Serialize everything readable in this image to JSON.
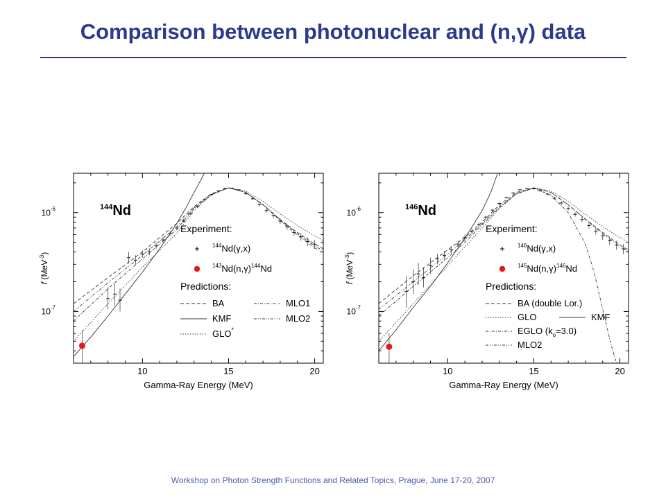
{
  "title": "Comparison between photonuclear and (n,γ) data",
  "footer": "Workshop on Photon Strength Functions and Related Topics, Prague, June 17-20, 2007",
  "chart_data": [
    {
      "type": "line",
      "nucleus": {
        "mass": "144",
        "symbol": "Nd"
      },
      "xlabel": "Gamma-Ray Energy (MeV)",
      "ylabel": {
        "italic": "f",
        "rest": " (MeV",
        "sup": "-3",
        "close": ")"
      },
      "xlim": [
        6,
        20.5
      ],
      "ylim": [
        3e-08,
        2.5e-06
      ],
      "yscale": "log",
      "xticks": [
        {
          "v": 10,
          "label": "10"
        },
        {
          "v": 15,
          "label": "15"
        },
        {
          "v": 20,
          "label": "20"
        }
      ],
      "yticks": [
        {
          "v": 1e-07,
          "base": "10",
          "exp": "-7"
        },
        {
          "v": 1e-06,
          "base": "10",
          "exp": "-6"
        }
      ],
      "legend": {
        "experiment_title": "Experiment:",
        "experiment": [
          {
            "marker": "plus",
            "sup1": "144",
            "text": "Nd(γ,x)",
            "sup2": "",
            "tail": ""
          },
          {
            "marker": "dot",
            "sup1": "143",
            "text": "Nd(n,γ)",
            "sup2": "144",
            "tail": "Nd"
          }
        ],
        "predictions_title": "Predictions:",
        "predictions": [
          {
            "label": "BA",
            "sup": "",
            "dash": "5,3",
            "col": 0,
            "row": 0
          },
          {
            "label": "KMF",
            "sup": "",
            "dash": "",
            "col": 0,
            "row": 1
          },
          {
            "label": "GLO",
            "sup": "*",
            "dash": "1.5,2",
            "col": 0,
            "row": 2
          },
          {
            "label": "MLO1",
            "sup": "",
            "dash": "4,2,1,2",
            "col": 1,
            "row": 0
          },
          {
            "label": "MLO2",
            "sup": "",
            "dash": "4,2,1,2,1,2",
            "col": 1,
            "row": 1
          }
        ]
      },
      "series": [
        {
          "name": "BA",
          "dash": "5,3",
          "x": [
            6,
            8,
            10,
            12,
            13,
            14,
            15,
            16,
            17,
            18,
            19,
            20,
            20.5
          ],
          "y": [
            1.2e-07,
            2.2e-07,
            4e-07,
            7.8e-07,
            1.15e-06,
            1.55e-06,
            1.78e-06,
            1.6e-06,
            1.2e-06,
            8.5e-07,
            6.3e-07,
            4.8e-07,
            4.3e-07
          ]
        },
        {
          "name": "KMF",
          "dash": "",
          "x": [
            6,
            7,
            8,
            9,
            10,
            11,
            12,
            12.5,
            13,
            13.3,
            13.6
          ],
          "y": [
            3.5e-08,
            5.5e-08,
            9e-08,
            1.5e-07,
            2.5e-07,
            4.3e-07,
            7.8e-07,
            1.1e-06,
            1.6e-06,
            2e-06,
            2.5e-06
          ]
        },
        {
          "name": "GLO",
          "dash": "1.5,2",
          "x": [
            6,
            8,
            10,
            12,
            13,
            14,
            15,
            16,
            17,
            18,
            19,
            20,
            20.5
          ],
          "y": [
            5e-08,
            1.2e-07,
            2.8e-07,
            6.2e-07,
            1.05e-06,
            1.5e-06,
            1.78e-06,
            1.65e-06,
            1.3e-06,
            9.7e-07,
            7.4e-07,
            5.8e-07,
            5.2e-07
          ]
        },
        {
          "name": "MLO1",
          "dash": "4,2,1,2",
          "x": [
            6,
            8,
            10,
            12,
            13,
            14,
            15,
            16,
            17,
            18,
            19,
            20,
            20.5
          ],
          "y": [
            8e-08,
            1.7e-07,
            3.4e-07,
            6.8e-07,
            1.1e-06,
            1.52e-06,
            1.78e-06,
            1.6e-06,
            1.2e-06,
            8.3e-07,
            5.9e-07,
            4.4e-07,
            3.9e-07
          ]
        },
        {
          "name": "MLO2",
          "dash": "4,2,1,2,1,2",
          "x": [
            6,
            8,
            10,
            12,
            13,
            14,
            15,
            16,
            17,
            18,
            19,
            20,
            20.5
          ],
          "y": [
            1e-07,
            1.95e-07,
            3.7e-07,
            7.2e-07,
            1.12e-06,
            1.53e-06,
            1.78e-06,
            1.6e-06,
            1.21e-06,
            8.5e-07,
            6.1e-07,
            4.6e-07,
            4.1e-07
          ]
        }
      ],
      "photonuclear": [
        {
          "x": 8.0,
          "y": 1.35e-07,
          "lo": 1.05e-07,
          "hi": 1.75e-07
        },
        {
          "x": 8.4,
          "y": 1.5e-07,
          "lo": 1.15e-07,
          "hi": 1.9e-07
        },
        {
          "x": 8.7,
          "y": 1.3e-07,
          "lo": 1e-07,
          "hi": 1.7e-07
        },
        {
          "x": 9.2,
          "y": 3.5e-07,
          "lo": 3.05e-07,
          "hi": 4e-07
        },
        {
          "x": 9.6,
          "y": 3.3e-07,
          "lo": 2.95e-07,
          "hi": 3.7e-07
        },
        {
          "x": 10.0,
          "y": 3.8e-07,
          "lo": 3.5e-07,
          "hi": 4.15e-07
        },
        {
          "x": 10.4,
          "y": 4e-07,
          "lo": 3.7e-07,
          "hi": 4.35e-07
        },
        {
          "x": 10.8,
          "y": 4.6e-07,
          "lo": 4.3e-07,
          "hi": 4.95e-07
        },
        {
          "x": 11.2,
          "y": 5.3e-07,
          "lo": 5e-07,
          "hi": 5.65e-07
        },
        {
          "x": 11.6,
          "y": 6.1e-07,
          "lo": 5.8e-07,
          "hi": 6.45e-07
        },
        {
          "x": 12.0,
          "y": 7e-07,
          "lo": 6.7e-07,
          "hi": 7.35e-07
        },
        {
          "x": 12.4,
          "y": 8.2e-07,
          "lo": 7.9e-07,
          "hi": 8.5e-07
        },
        {
          "x": 12.8,
          "y": 9.8e-07,
          "lo": 9.5e-07,
          "hi": 1.01e-06
        },
        {
          "x": 13.2,
          "y": 1.15e-06,
          "lo": 1.12e-06,
          "hi": 1.18e-06
        },
        {
          "x": 13.6,
          "y": 1.35e-06,
          "lo": 1.32e-06,
          "hi": 1.38e-06
        },
        {
          "x": 14.0,
          "y": 1.52e-06,
          "lo": 1.49e-06,
          "hi": 1.55e-06
        },
        {
          "x": 14.4,
          "y": 1.66e-06,
          "lo": 1.63e-06,
          "hi": 1.69e-06
        },
        {
          "x": 14.8,
          "y": 1.76e-06,
          "lo": 1.73e-06,
          "hi": 1.79e-06
        },
        {
          "x": 15.2,
          "y": 1.77e-06,
          "lo": 1.74e-06,
          "hi": 1.8e-06
        },
        {
          "x": 15.6,
          "y": 1.7e-06,
          "lo": 1.67e-06,
          "hi": 1.73e-06
        },
        {
          "x": 16.0,
          "y": 1.55e-06,
          "lo": 1.52e-06,
          "hi": 1.58e-06
        },
        {
          "x": 16.4,
          "y": 1.38e-06,
          "lo": 1.34e-06,
          "hi": 1.42e-06
        },
        {
          "x": 16.8,
          "y": 1.2e-06,
          "lo": 1.15e-06,
          "hi": 1.25e-06
        },
        {
          "x": 17.2,
          "y": 1.05e-06,
          "lo": 1e-06,
          "hi": 1.1e-06
        },
        {
          "x": 17.6,
          "y": 9.3e-07,
          "lo": 8.8e-07,
          "hi": 9.8e-07
        },
        {
          "x": 18.0,
          "y": 8.2e-07,
          "lo": 7.7e-07,
          "hi": 8.7e-07
        },
        {
          "x": 18.4,
          "y": 7.2e-07,
          "lo": 6.7e-07,
          "hi": 7.7e-07
        },
        {
          "x": 18.8,
          "y": 6.3e-07,
          "lo": 5.8e-07,
          "hi": 6.8e-07
        },
        {
          "x": 19.2,
          "y": 5.7e-07,
          "lo": 5.2e-07,
          "hi": 6.2e-07
        },
        {
          "x": 19.6,
          "y": 5.1e-07,
          "lo": 4.6e-07,
          "hi": 5.6e-07
        },
        {
          "x": 20.0,
          "y": 4.8e-07,
          "lo": 4.3e-07,
          "hi": 5.3e-07
        }
      ],
      "capture": [
        {
          "x": 6.5,
          "y": 4.5e-08,
          "lo": 3e-08,
          "hi": 6.5e-08
        }
      ]
    },
    {
      "type": "line",
      "nucleus": {
        "mass": "146",
        "symbol": "Nd"
      },
      "xlabel": "Gamma-Ray Energy (MeV)",
      "ylabel": {
        "italic": "f",
        "rest": " (MeV",
        "sup": "-3",
        "close": ")"
      },
      "xlim": [
        6,
        20.5
      ],
      "ylim": [
        3e-08,
        2.5e-06
      ],
      "yscale": "log",
      "xticks": [
        {
          "v": 10,
          "label": "10"
        },
        {
          "v": 15,
          "label": "15"
        },
        {
          "v": 20,
          "label": "20"
        }
      ],
      "yticks": [
        {
          "v": 1e-07,
          "base": "10",
          "exp": "-7"
        },
        {
          "v": 1e-06,
          "base": "10",
          "exp": "-6"
        }
      ],
      "legend": {
        "experiment_title": "Experiment:",
        "experiment": [
          {
            "marker": "plus",
            "sup1": "146",
            "text": "Nd(γ,x)",
            "sup2": "",
            "tail": ""
          },
          {
            "marker": "dot",
            "sup1": "145",
            "text": "Nd(n,γ)",
            "sup2": "146",
            "tail": "Nd"
          }
        ],
        "predictions_title": "Predictions:",
        "predictions": [
          {
            "label": "BA (double Lor.)",
            "sup": "",
            "dash": "5,3",
            "col": 0,
            "row": 0
          },
          {
            "label": "GLO",
            "sup": "",
            "dash": "1.5,2",
            "col": 0,
            "row": 1
          },
          {
            "label": "KMF",
            "sup": "",
            "dash": "",
            "col": 1,
            "row": 1
          },
          {
            "label": "EGLO (k",
            "sub": "o",
            "after": "=3.0)",
            "sup": "",
            "dash": "4,2,1,2",
            "col": 0,
            "row": 2
          },
          {
            "label": "MLO2",
            "sup": "",
            "dash": "4,2,1,2,1,2",
            "col": 0,
            "row": 3
          }
        ]
      },
      "series": [
        {
          "name": "BA (double Lor.)",
          "dash": "5,3",
          "x": [
            6,
            8,
            10,
            11,
            12,
            13,
            14,
            15,
            16,
            17,
            18,
            19,
            20,
            20.5
          ],
          "y": [
            1.2e-07,
            2.3e-07,
            4.2e-07,
            5.6e-07,
            8e-07,
            1.2e-06,
            1.6e-06,
            1.78e-06,
            1.6e-06,
            1.2e-06,
            8.6e-07,
            6.3e-07,
            4.7e-07,
            4.2e-07
          ]
        },
        {
          "name": "GLO",
          "dash": "1.5,2",
          "x": [
            6,
            8,
            10,
            11,
            12,
            13,
            14,
            15,
            16,
            17,
            18,
            19,
            20,
            20.5
          ],
          "y": [
            5e-08,
            1.2e-07,
            2.9e-07,
            4.5e-07,
            7e-07,
            1.1e-06,
            1.55e-06,
            1.78e-06,
            1.65e-06,
            1.3e-06,
            9.6e-07,
            7.2e-07,
            5.6e-07,
            5e-07
          ]
        },
        {
          "name": "KMF",
          "dash": "",
          "x": [
            6,
            7,
            8,
            9,
            10,
            11,
            11.5,
            12,
            12.5,
            12.9
          ],
          "y": [
            4e-08,
            6.5e-08,
            1.1e-07,
            1.8e-07,
            3.1e-07,
            5.5e-07,
            7.6e-07,
            1.05e-06,
            1.6e-06,
            2.5e-06
          ]
        },
        {
          "name": "EGLO (ko=3.0)",
          "dash": "4,2,1,2",
          "x": [
            6,
            8,
            10,
            11,
            12,
            13,
            14,
            15,
            16,
            17,
            18,
            18.5,
            19,
            19.5,
            19.8
          ],
          "y": [
            9e-08,
            1.8e-07,
            3.5e-07,
            5e-07,
            7.5e-07,
            1.12e-06,
            1.55e-06,
            1.76e-06,
            1.5e-06,
            1e-06,
            4.8e-07,
            2.5e-07,
            1.05e-07,
            4.5e-08,
            3e-08
          ]
        },
        {
          "name": "MLO2",
          "dash": "4,2,1,2,1,2",
          "x": [
            6,
            8,
            10,
            11,
            12,
            13,
            14,
            15,
            16,
            17,
            18,
            19,
            20,
            20.5
          ],
          "y": [
            1.05e-07,
            2e-07,
            3.8e-07,
            5.3e-07,
            7.7e-07,
            1.15e-06,
            1.56e-06,
            1.78e-06,
            1.6e-06,
            1.2e-06,
            8.5e-07,
            6.1e-07,
            4.5e-07,
            4e-07
          ]
        }
      ],
      "photonuclear": [
        {
          "x": 7.6,
          "y": 1.6e-07,
          "lo": 1.1e-07,
          "hi": 2.3e-07
        },
        {
          "x": 8.0,
          "y": 2e-07,
          "lo": 1.5e-07,
          "hi": 2.7e-07
        },
        {
          "x": 8.3,
          "y": 2.4e-07,
          "lo": 1.85e-07,
          "hi": 3.1e-07
        },
        {
          "x": 8.6,
          "y": 2.2e-07,
          "lo": 1.75e-07,
          "hi": 2.8e-07
        },
        {
          "x": 9.0,
          "y": 2.9e-07,
          "lo": 2.4e-07,
          "hi": 3.5e-07
        },
        {
          "x": 9.4,
          "y": 3.4e-07,
          "lo": 3e-07,
          "hi": 3.85e-07
        },
        {
          "x": 9.8,
          "y": 3.7e-07,
          "lo": 3.3e-07,
          "hi": 4.1e-07
        },
        {
          "x": 10.2,
          "y": 4.2e-07,
          "lo": 3.85e-07,
          "hi": 4.6e-07
        },
        {
          "x": 10.6,
          "y": 4.8e-07,
          "lo": 4.45e-07,
          "hi": 5.2e-07
        },
        {
          "x": 11.0,
          "y": 5.6e-07,
          "lo": 5.25e-07,
          "hi": 6e-07
        },
        {
          "x": 11.4,
          "y": 6.5e-07,
          "lo": 6.15e-07,
          "hi": 6.9e-07
        },
        {
          "x": 11.8,
          "y": 7.6e-07,
          "lo": 7.25e-07,
          "hi": 8e-07
        },
        {
          "x": 12.2,
          "y": 9e-07,
          "lo": 8.7e-07,
          "hi": 9.3e-07
        },
        {
          "x": 12.6,
          "y": 1.06e-06,
          "lo": 1.03e-06,
          "hi": 1.09e-06
        },
        {
          "x": 13.0,
          "y": 1.24e-06,
          "lo": 1.21e-06,
          "hi": 1.27e-06
        },
        {
          "x": 13.4,
          "y": 1.42e-06,
          "lo": 1.39e-06,
          "hi": 1.45e-06
        },
        {
          "x": 13.8,
          "y": 1.58e-06,
          "lo": 1.55e-06,
          "hi": 1.61e-06
        },
        {
          "x": 14.2,
          "y": 1.7e-06,
          "lo": 1.67e-06,
          "hi": 1.73e-06
        },
        {
          "x": 14.6,
          "y": 1.76e-06,
          "lo": 1.73e-06,
          "hi": 1.79e-06
        },
        {
          "x": 15.0,
          "y": 1.74e-06,
          "lo": 1.71e-06,
          "hi": 1.77e-06
        },
        {
          "x": 15.4,
          "y": 1.66e-06,
          "lo": 1.63e-06,
          "hi": 1.69e-06
        },
        {
          "x": 15.8,
          "y": 1.54e-06,
          "lo": 1.5e-06,
          "hi": 1.58e-06
        },
        {
          "x": 16.2,
          "y": 1.4e-06,
          "lo": 1.35e-06,
          "hi": 1.45e-06
        },
        {
          "x": 16.6,
          "y": 1.25e-06,
          "lo": 1.2e-06,
          "hi": 1.3e-06
        },
        {
          "x": 17.0,
          "y": 1.1e-06,
          "lo": 1.05e-06,
          "hi": 1.15e-06
        },
        {
          "x": 17.4,
          "y": 9.6e-07,
          "lo": 9.1e-07,
          "hi": 1.01e-06
        },
        {
          "x": 17.8,
          "y": 8.5e-07,
          "lo": 8e-07,
          "hi": 9e-07
        },
        {
          "x": 18.2,
          "y": 7.4e-07,
          "lo": 6.9e-07,
          "hi": 7.9e-07
        },
        {
          "x": 18.6,
          "y": 6.5e-07,
          "lo": 6e-07,
          "hi": 7e-07
        },
        {
          "x": 19.0,
          "y": 5.8e-07,
          "lo": 5.3e-07,
          "hi": 6.3e-07
        },
        {
          "x": 19.4,
          "y": 5.2e-07,
          "lo": 4.7e-07,
          "hi": 5.7e-07
        },
        {
          "x": 19.8,
          "y": 4.7e-07,
          "lo": 4.2e-07,
          "hi": 5.2e-07
        },
        {
          "x": 20.2,
          "y": 4.3e-07,
          "lo": 3.8e-07,
          "hi": 4.8e-07
        }
      ],
      "capture": [
        {
          "x": 6.6,
          "y": 4.4e-08,
          "lo": 3e-08,
          "hi": 6e-08
        }
      ]
    }
  ]
}
